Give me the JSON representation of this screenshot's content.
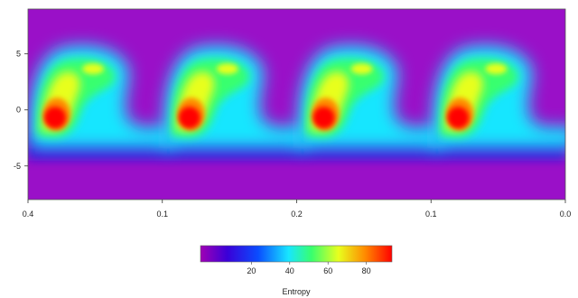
{
  "chart_data": {
    "type": "heatmap",
    "title": "",
    "xlabel": "",
    "ylabel": "",
    "x_ticks": [
      "0.4",
      "0.1",
      "0.2",
      "0.1",
      "0.0"
    ],
    "y_ticks": [
      "5",
      "0",
      "-5"
    ],
    "x_range": [
      0.4,
      0.0
    ],
    "y_range": [
      -8,
      9
    ],
    "colorscale": [
      "#a000b4",
      "#3a00d8",
      "#0a4cff",
      "#18e6ff",
      "#38ff6e",
      "#e8ff1e",
      "#ff8a00",
      "#ff0000"
    ],
    "colorbar": {
      "title": "Entropy",
      "ticks": [
        "20",
        "40",
        "60",
        "80"
      ],
      "range": [
        0,
        100
      ]
    },
    "pattern": {
      "periods": 4,
      "description_free": true,
      "baseline_level": 8,
      "lower_band_level": 25,
      "peak_level": 98
    }
  }
}
